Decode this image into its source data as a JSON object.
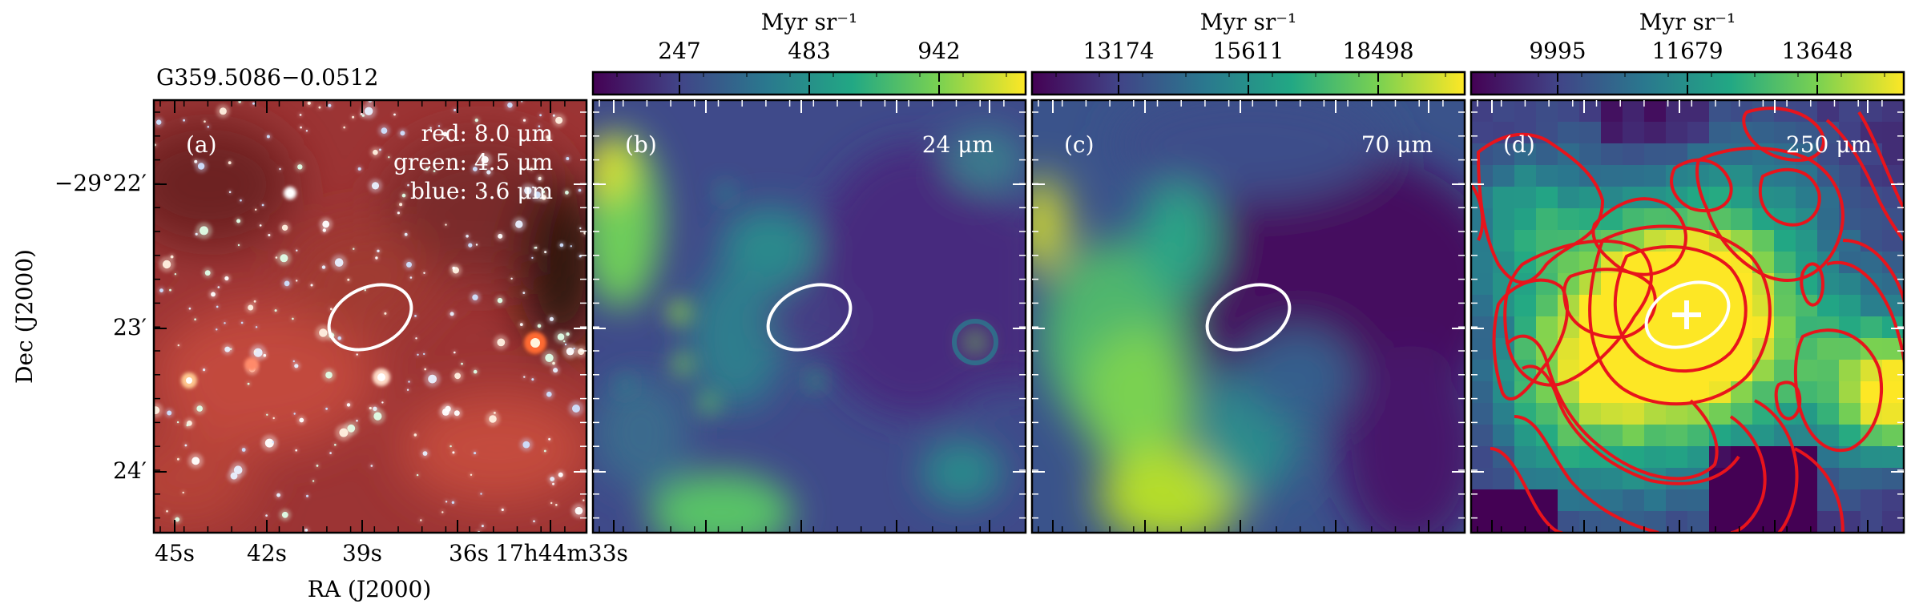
{
  "figure": {
    "source_name": "G359.5086−0.0512",
    "x_axis_label": "RA (J2000)",
    "y_axis_label": "Dec (J2000)",
    "ra_ticks": [
      "45s",
      "42s",
      "39s",
      "36s",
      "17h44m33s"
    ],
    "dec_ticks": [
      "−29°22′",
      "23′",
      "24′"
    ],
    "colorbar_unit": "Myr sr⁻¹"
  },
  "panels": [
    {
      "label": "(a)",
      "legend": [
        "red: 8.0 μm",
        "green: 4.5 μm",
        "blue: 3.6 μm"
      ],
      "colors": {
        "base": "#9c3434",
        "dark": "#4a1515",
        "bright": "#e25a4a"
      }
    },
    {
      "label": "(b)",
      "wavelength": "24 μm",
      "colorbar_ticks": [
        "247",
        "483",
        "942"
      ]
    },
    {
      "label": "(c)",
      "wavelength": "70 μm",
      "colorbar_ticks": [
        "13174",
        "15611",
        "18498"
      ]
    },
    {
      "label": "(d)",
      "wavelength": "250 μm",
      "colorbar_ticks": [
        "9995",
        "11679",
        "13648"
      ],
      "contour_color": "#e8141c"
    }
  ],
  "colormap": [
    "#440154",
    "#414487",
    "#2a788e",
    "#22a884",
    "#7ad151",
    "#fde725"
  ]
}
